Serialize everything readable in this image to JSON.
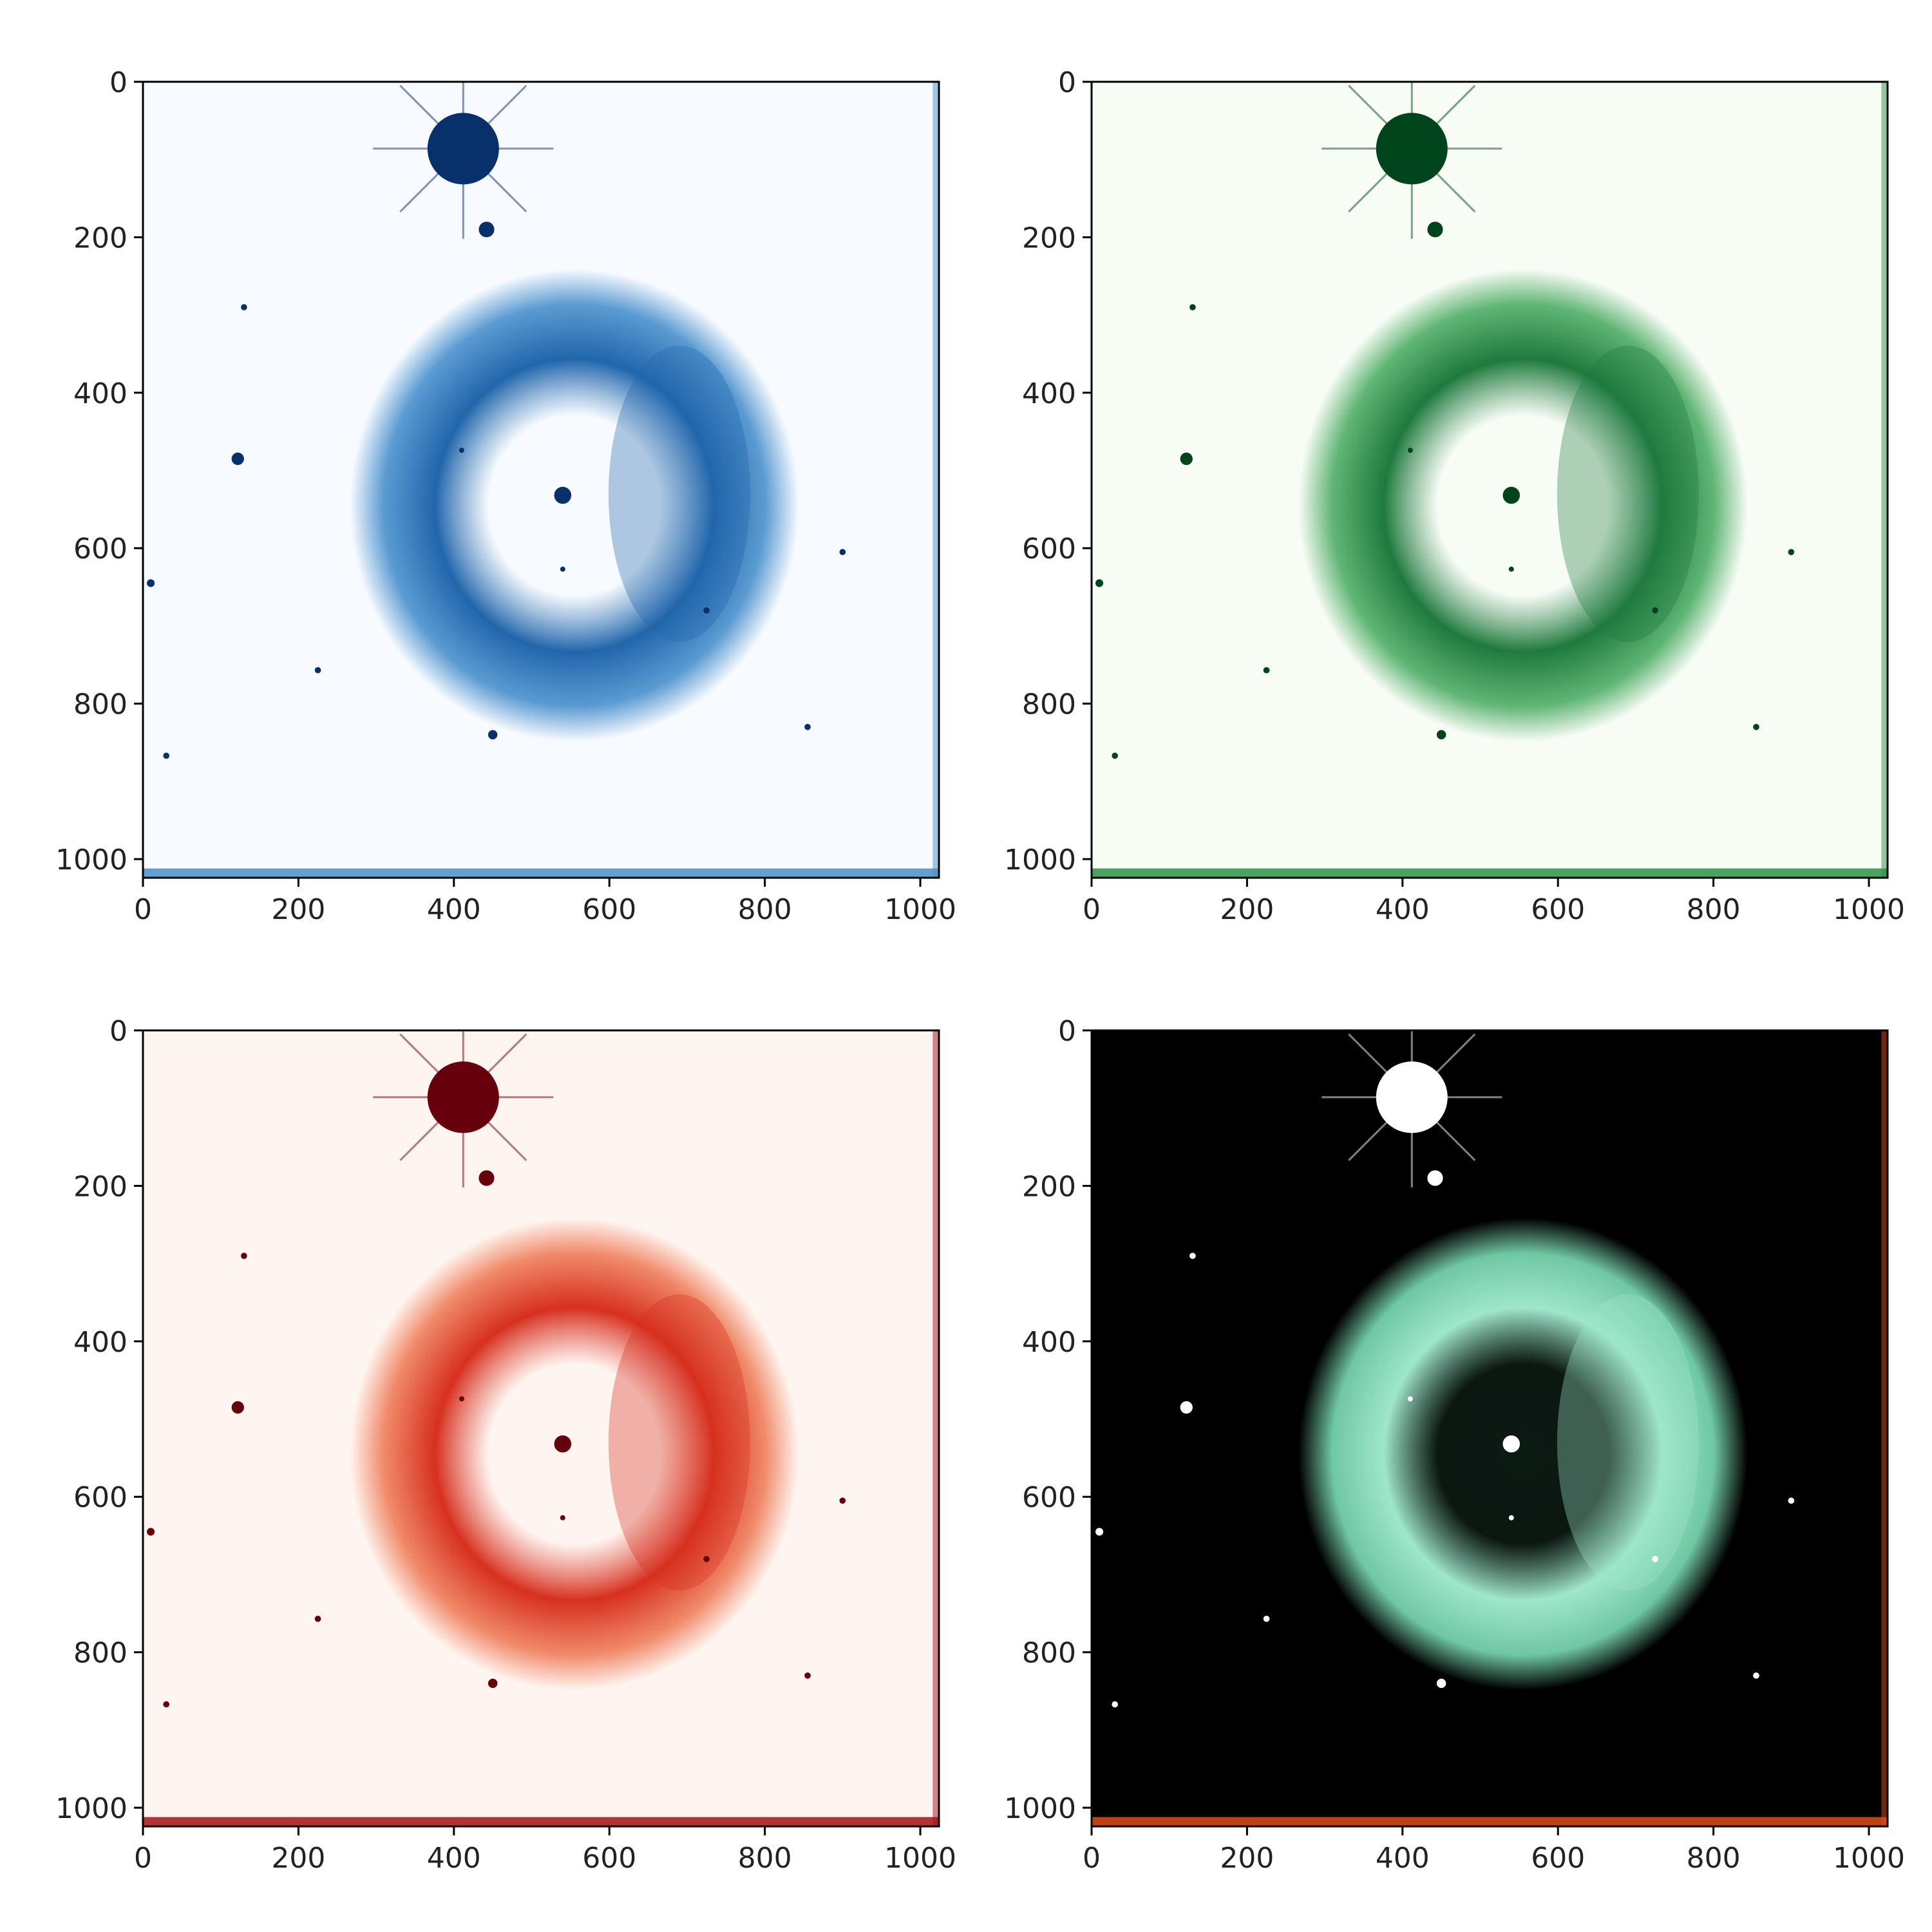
{
  "panels": [
    {
      "id": "blue",
      "colormap": "Blues",
      "background": "#f7fbff",
      "nebula_fill": "#5b9bd2",
      "nebula_core": "#2166ac",
      "inner_fill": "#f7fbff",
      "star_color": "#08306b",
      "edge_color": "#4a8ec8"
    },
    {
      "id": "green",
      "colormap": "Greens",
      "background": "#f7fcf5",
      "nebula_fill": "#5fb574",
      "nebula_core": "#1f7a3e",
      "inner_fill": "#f7fcf5",
      "star_color": "#00441b",
      "edge_color": "#2f8f4a"
    },
    {
      "id": "red",
      "colormap": "Reds",
      "background": "#fff5f0",
      "nebula_fill": "#f08a6a",
      "nebula_core": "#d7301f",
      "inner_fill": "#fff5f0",
      "star_color": "#67000d",
      "edge_color": "#a50f15"
    },
    {
      "id": "rgb",
      "colormap": "RGB composite",
      "background": "#000000",
      "nebula_fill": "#6fc7a4",
      "nebula_core": "#9fe6cc",
      "inner_fill": "#0c1a14",
      "star_color": "#ffffff",
      "edge_color": "#e04a1a"
    }
  ],
  "axes": {
    "x_ticks": [
      "0",
      "200",
      "400",
      "600",
      "800",
      "1000"
    ],
    "y_ticks": [
      "0",
      "200",
      "400",
      "600",
      "800",
      "1000"
    ],
    "x_range": [
      0,
      1024
    ],
    "y_range": [
      1024,
      0
    ]
  }
}
